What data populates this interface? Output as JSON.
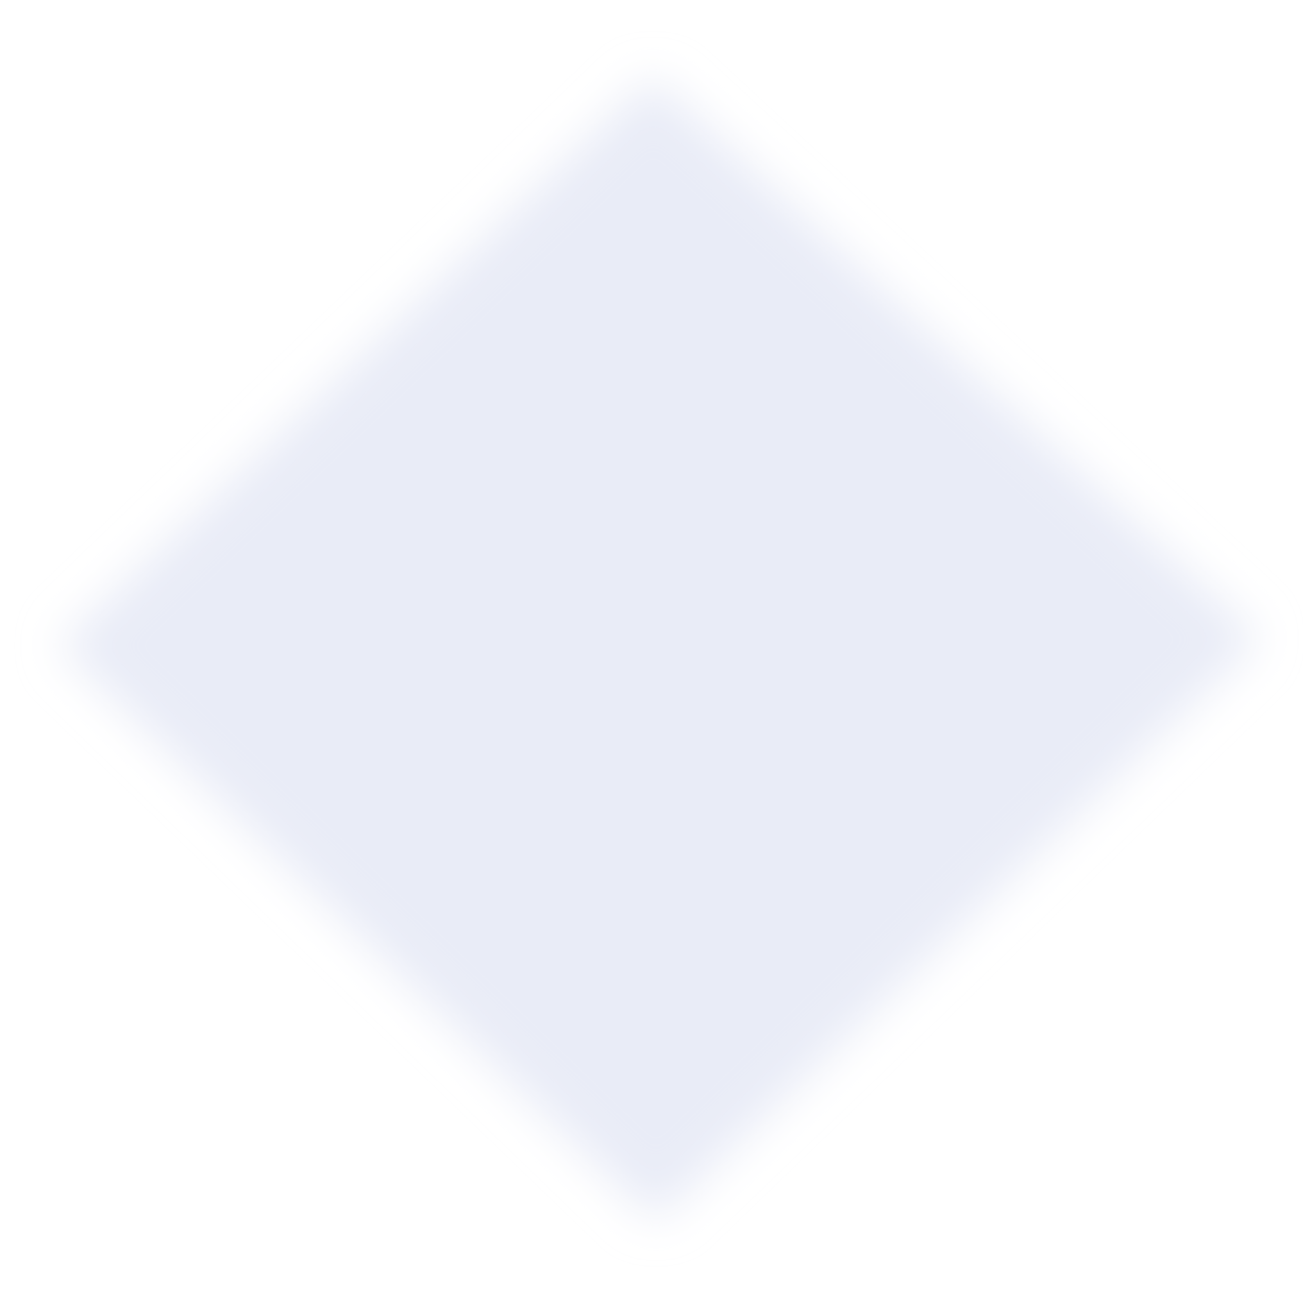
{
  "background": {
    "color": "#ffffff"
  },
  "shape": {
    "kind": "diamond",
    "icon": "blurred-diamond-shape",
    "fill_color": "#e9ecf7",
    "edge": "soft-blurred"
  }
}
